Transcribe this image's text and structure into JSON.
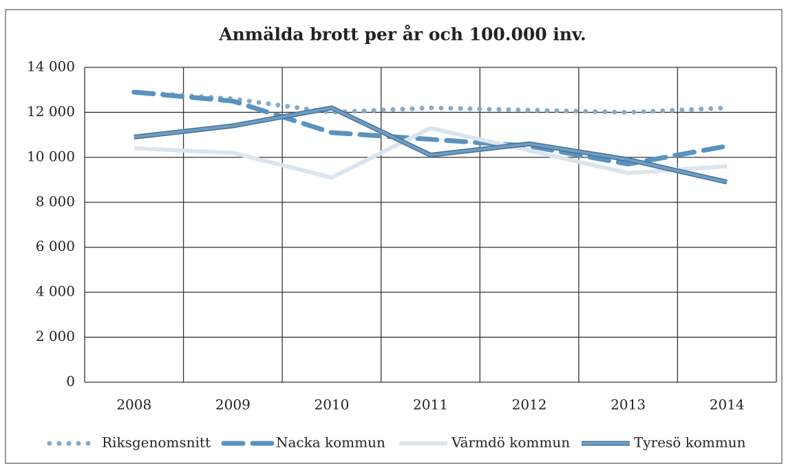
{
  "chart_data": {
    "type": "line",
    "title": "Anmälda brott per år och 100.000 inv.",
    "categories": [
      "2008",
      "2009",
      "2010",
      "2011",
      "2012",
      "2013",
      "2014"
    ],
    "series": [
      {
        "name": "Riksgenomsnitt",
        "color": "#86abcb",
        "style": "dotted",
        "values": [
          12900,
          12600,
          12000,
          12200,
          12100,
          12000,
          12200
        ]
      },
      {
        "name": "Nacka kommun",
        "color": "#5a92bf",
        "style": "dashed",
        "values": [
          12900,
          12500,
          11100,
          10800,
          10500,
          9700,
          10500
        ]
      },
      {
        "name": "Värmdö kommun",
        "color": "#dbe5ef",
        "style": "solid",
        "values": [
          10400,
          10200,
          9100,
          11300,
          10300,
          9300,
          9600
        ]
      },
      {
        "name": "Tyresö kommun",
        "color": "#6c9ec6",
        "style": "outlined",
        "values": [
          10900,
          11400,
          12200,
          10100,
          10600,
          9900,
          8900
        ]
      }
    ],
    "ylim": [
      0,
      14000
    ],
    "yticks": [
      0,
      {
        "value": 2000,
        "label": "2 000"
      },
      {
        "value": 4000,
        "label": "4 000"
      },
      {
        "value": 6000,
        "label": "6 000"
      },
      {
        "value": 8000,
        "label": "8 000"
      },
      {
        "value": 10000,
        "label": "10 000"
      },
      {
        "value": 12000,
        "label": "12 000"
      },
      {
        "value": 14000,
        "label": "14 000"
      }
    ],
    "grid": true,
    "legend": "bottom"
  }
}
